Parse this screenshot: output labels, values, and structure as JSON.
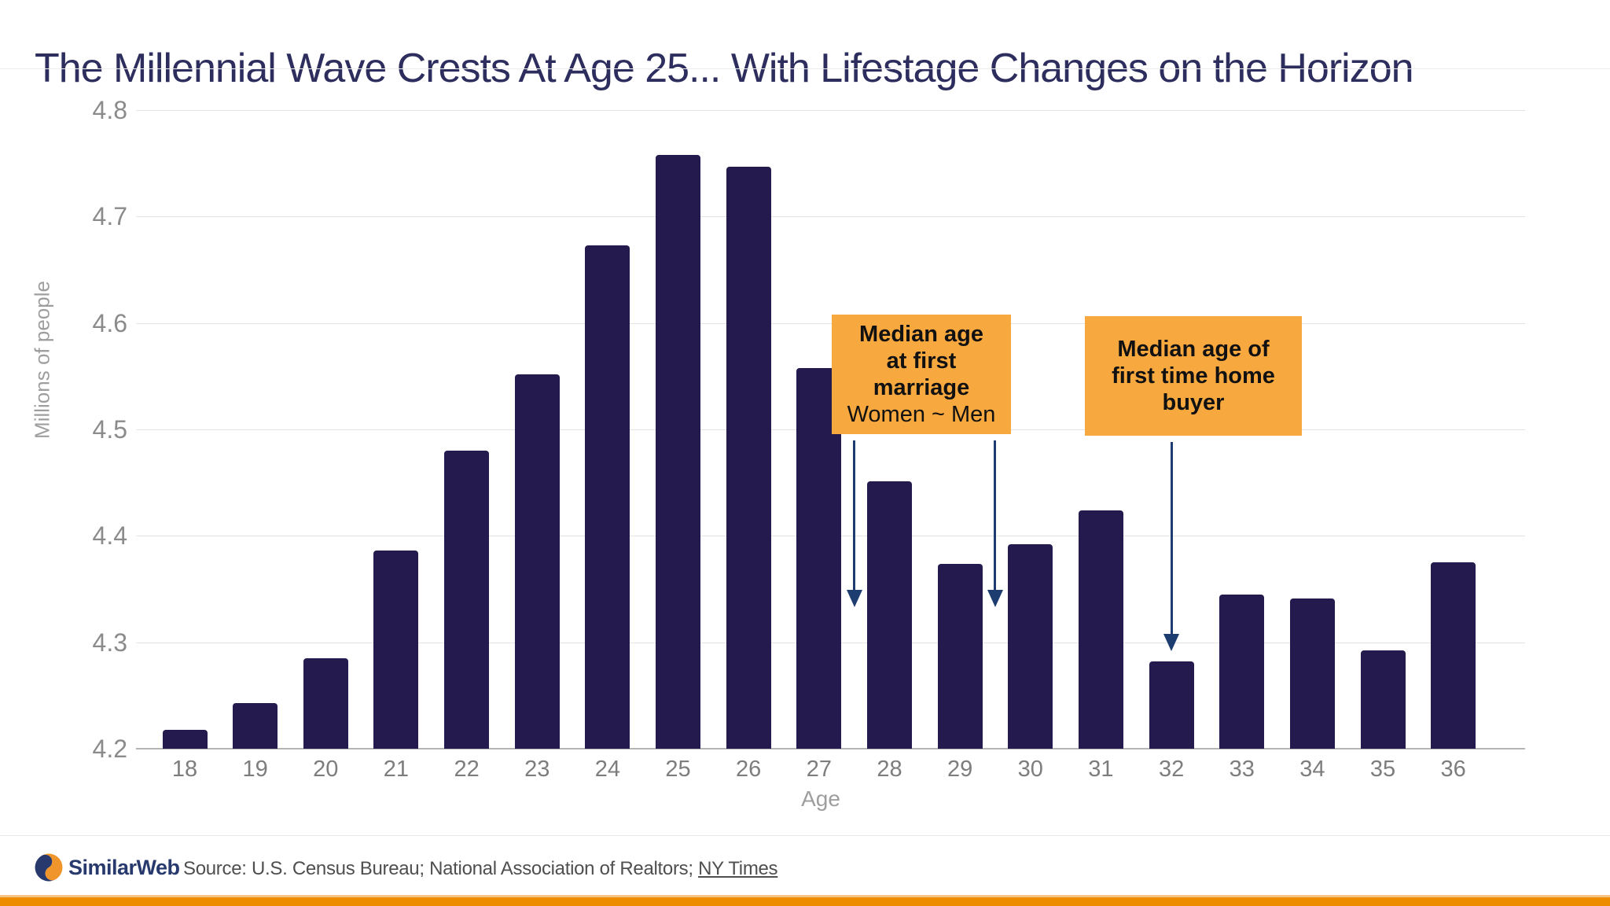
{
  "title": "The Millennial Wave Crests At Age 25... With Lifestage Changes on the Horizon",
  "chart_data": {
    "type": "bar",
    "title": "The Millennial Wave Crests At Age 25... With Lifestage Changes on the Horizon",
    "categories": [
      "18",
      "19",
      "20",
      "21",
      "22",
      "23",
      "24",
      "25",
      "26",
      "27",
      "28",
      "29",
      "30",
      "31",
      "32",
      "33",
      "34",
      "35",
      "36"
    ],
    "values": [
      4.218,
      4.243,
      4.285,
      4.386,
      4.48,
      4.552,
      4.673,
      4.758,
      4.747,
      4.558,
      4.451,
      4.374,
      4.392,
      4.424,
      4.282,
      4.345,
      4.341,
      4.292,
      4.375
    ],
    "xlabel": "Age",
    "ylabel": "Millions of people",
    "ylim": [
      4.2,
      4.8
    ],
    "yticks": [
      "4.2",
      "4.3",
      "4.4",
      "4.5",
      "4.6",
      "4.7",
      "4.8"
    ],
    "grid": "horizontal",
    "legend": "none",
    "annotations": [
      {
        "id": "median-marriage",
        "bold_lines": [
          "Median age",
          "at first",
          "marriage"
        ],
        "plain_lines": [
          "Women ~ Men"
        ],
        "arrow_ages": [
          27.5,
          29.5
        ]
      },
      {
        "id": "first-home-buyer",
        "bold_lines": [
          "Median age of",
          "first time home",
          "buyer"
        ],
        "plain_lines": [],
        "arrow_ages": [
          32
        ]
      }
    ]
  },
  "footer": {
    "logo_text": "SimilarWeb",
    "source_prefix": "Source: U.S. Census Bureau; National Association of Realtors; ",
    "source_link": "NY Times"
  },
  "colors": {
    "bar": "#251a4e",
    "title": "#2d2d5e",
    "annotation_bg": "#f7a83e",
    "annotation_text": "#111111",
    "arrow": "#1d3c6f",
    "gridline": "#e3e3e3",
    "axis_label": "#8b8b8b",
    "footer_bar": "#ee8c00",
    "logo_navy": "#283a6d",
    "logo_orange": "#f0952b"
  }
}
